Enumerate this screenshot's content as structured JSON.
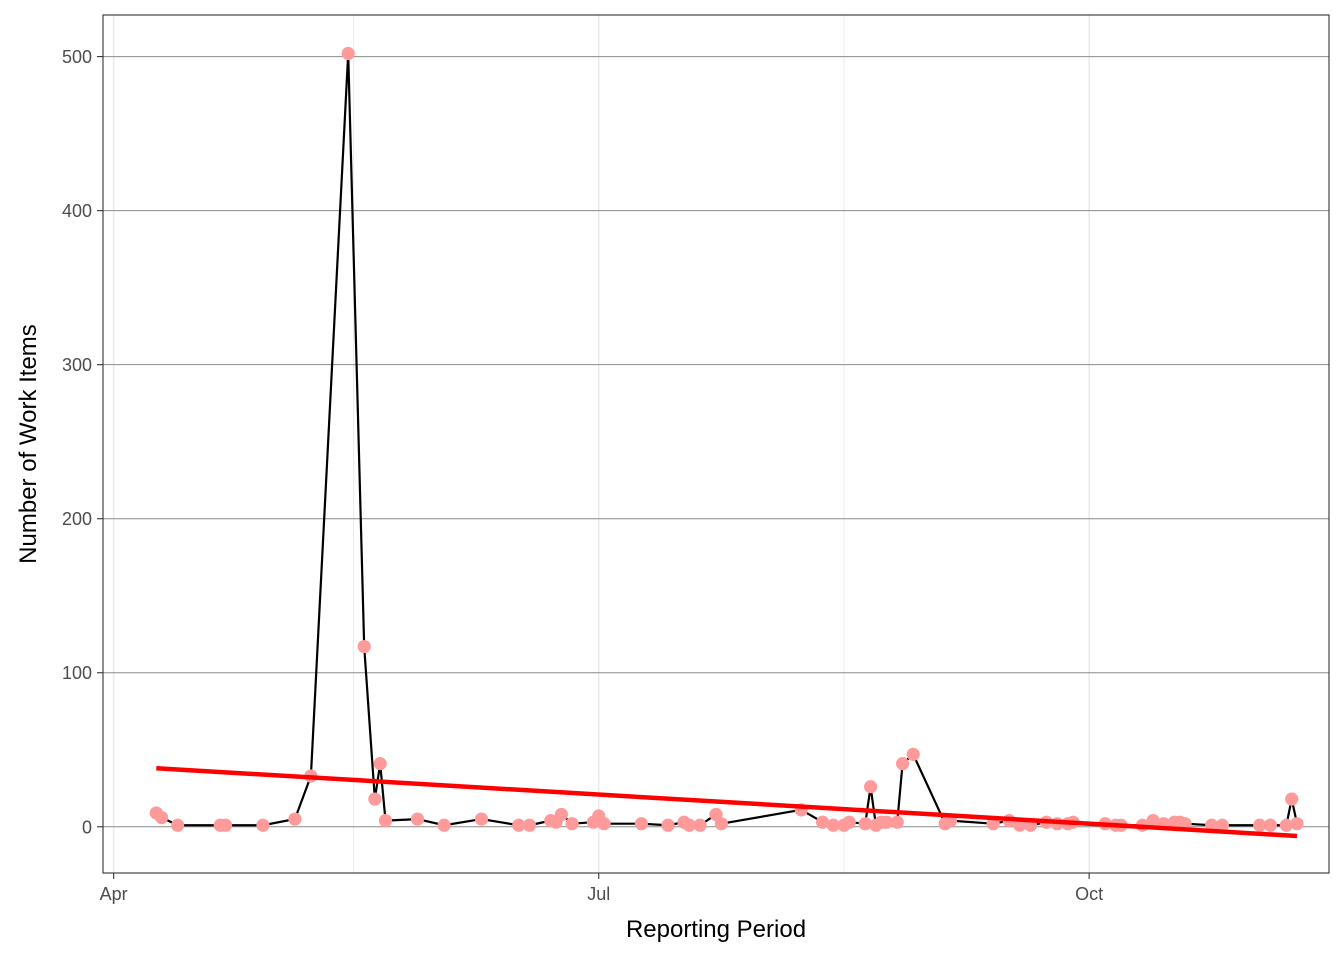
{
  "chart_data": {
    "type": "line",
    "title": "",
    "xlabel": "Reporting Period",
    "ylabel": "Number of Work Items",
    "x_axis": {
      "type": "date",
      "range": [
        "2023-03-30",
        "2023-11-15"
      ],
      "ticks": [
        {
          "date": "2023-04-01",
          "label": "Apr"
        },
        {
          "date": "2023-07-01",
          "label": "Jul"
        },
        {
          "date": "2023-10-01",
          "label": "Oct"
        }
      ],
      "minor_gridlines": [
        "2023-05-16",
        "2023-08-16"
      ]
    },
    "y_axis": {
      "range": [
        -30,
        527
      ],
      "ticks": [
        0,
        100,
        200,
        300,
        400,
        500
      ]
    },
    "grid": true,
    "legend": "none",
    "colors": {
      "points": "#ff9a9a",
      "line": "#000000",
      "trend": "#ff0000",
      "major_grid": "#8c8c8c",
      "minor_grid": "#ebebeb",
      "panel_border": "#333333"
    },
    "series": [
      {
        "x": [
          "2023-04-09",
          "2023-04-10",
          "2023-04-13",
          "2023-04-21",
          "2023-04-22",
          "2023-04-29",
          "2023-05-05",
          "2023-05-08",
          "2023-05-15",
          "2023-05-18",
          "2023-05-20",
          "2023-05-21",
          "2023-05-22",
          "2023-05-28",
          "2023-06-02",
          "2023-06-09",
          "2023-06-16",
          "2023-06-18",
          "2023-06-22",
          "2023-06-23",
          "2023-06-24",
          "2023-06-26",
          "2023-06-30",
          "2023-07-01",
          "2023-07-02",
          "2023-07-09",
          "2023-07-14",
          "2023-07-17",
          "2023-07-18",
          "2023-07-20",
          "2023-07-23",
          "2023-07-24",
          "2023-08-08",
          "2023-08-12",
          "2023-08-14",
          "2023-08-16",
          "2023-08-17",
          "2023-08-20",
          "2023-08-21",
          "2023-08-22",
          "2023-08-23",
          "2023-08-24",
          "2023-08-26",
          "2023-08-27",
          "2023-08-29",
          "2023-09-04",
          "2023-09-05",
          "2023-09-13",
          "2023-09-16",
          "2023-09-18",
          "2023-09-20",
          "2023-09-23",
          "2023-09-25",
          "2023-09-27",
          "2023-09-28",
          "2023-10-04",
          "2023-10-06",
          "2023-10-07",
          "2023-10-11",
          "2023-10-13",
          "2023-10-15",
          "2023-10-17",
          "2023-10-18",
          "2023-10-19",
          "2023-10-24",
          "2023-10-26",
          "2023-11-02",
          "2023-11-04",
          "2023-11-07",
          "2023-11-08",
          "2023-11-09"
        ],
        "values": [
          9,
          6,
          1,
          1,
          1,
          1,
          5,
          33,
          502,
          117,
          18,
          41,
          4,
          5,
          1,
          5,
          1,
          1,
          4,
          3,
          8,
          2,
          3,
          7,
          2,
          2,
          1,
          3,
          1,
          1,
          8,
          2,
          11,
          3,
          1,
          1,
          3,
          2,
          26,
          1,
          3,
          3,
          3,
          41,
          47,
          2,
          4,
          2,
          4,
          1,
          1,
          3,
          2,
          2,
          3,
          2,
          1,
          1,
          1,
          4,
          2,
          3,
          3,
          2,
          1,
          1,
          1,
          1,
          1,
          18,
          2
        ]
      }
    ],
    "trend_line": {
      "type": "linear",
      "start": {
        "x": "2023-04-09",
        "y": 38
      },
      "end": {
        "x": "2023-11-09",
        "y": -6
      }
    }
  }
}
